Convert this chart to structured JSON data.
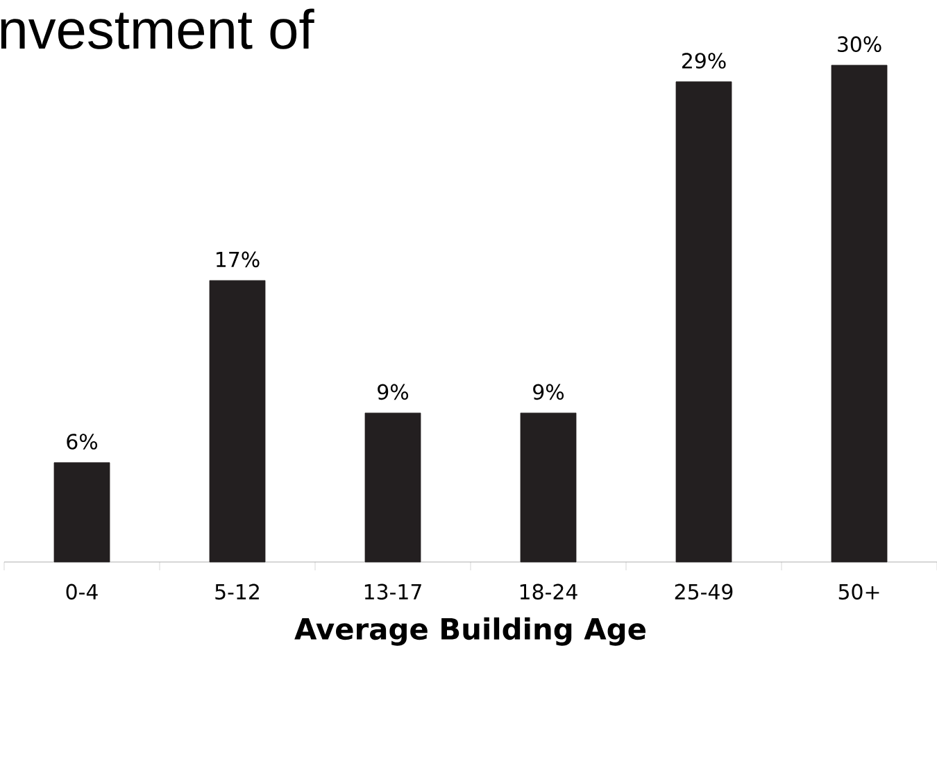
{
  "chart_data": {
    "type": "bar",
    "title": "nvestment of",
    "xlabel": "Average Building Age",
    "categories": [
      "0-4",
      "5-12",
      "13-17",
      "18-24",
      "25-49",
      "50+"
    ],
    "values": [
      6,
      17,
      9,
      9,
      29,
      30
    ],
    "value_labels": [
      "6%",
      "17%",
      "9%",
      "9%",
      "29%",
      "30%"
    ],
    "color": "#231f20",
    "grid": false
  }
}
